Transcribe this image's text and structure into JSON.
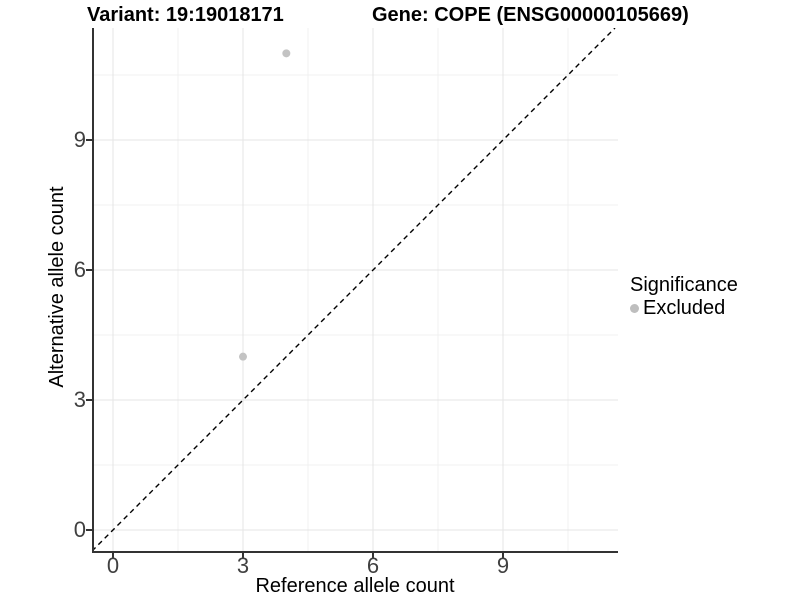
{
  "chart_data": {
    "type": "scatter",
    "title_left": "Variant: 19:19018171",
    "title_right": "Gene: COPE (ENSG00000105669)",
    "xlabel": "Reference allele count",
    "ylabel": "Alternative allele count",
    "xlim": [
      -0.48,
      11.65
    ],
    "ylim": [
      -0.53,
      11.58
    ],
    "x_major_ticks": [
      0,
      3,
      6,
      9
    ],
    "y_major_ticks": [
      0,
      3,
      6,
      9
    ],
    "x_minor_gridlines": [
      1.5,
      4.5,
      7.5,
      10.5
    ],
    "y_minor_gridlines": [
      1.5,
      4.5,
      7.5,
      10.5
    ],
    "grid": true,
    "series": [
      {
        "name": "Excluded",
        "marker": "circle",
        "color": "#c3c3c3",
        "points": [
          {
            "x": 4,
            "y": 11
          },
          {
            "x": 3,
            "y": 4
          }
        ]
      }
    ],
    "reference_line": {
      "type": "identity",
      "style": "dashed",
      "color": "#000000"
    },
    "legend": {
      "title": "Significance",
      "position": "right",
      "entries": [
        {
          "label": "Excluded",
          "color": "#bebebe",
          "marker": "circle"
        }
      ]
    },
    "colors": {
      "axis_line": "#333333",
      "tick_mark": "#333333",
      "tick_label": "#404040",
      "grid_major": "#e5e5e5",
      "grid_minor": "#f0f0f0",
      "background": "#ffffff"
    }
  }
}
